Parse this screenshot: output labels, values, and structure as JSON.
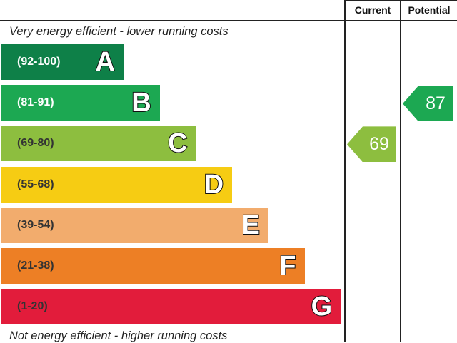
{
  "header": {
    "current": "Current",
    "potential": "Potential"
  },
  "captions": {
    "top": "Very energy efficient - lower running costs",
    "bottom": "Not energy efficient - higher running costs"
  },
  "chart_data": {
    "type": "bar",
    "categories": [
      "A",
      "B",
      "C",
      "D",
      "E",
      "F",
      "G"
    ],
    "ranges": [
      "(92-100)",
      "(81-91)",
      "(69-80)",
      "(55-68)",
      "(39-54)",
      "(21-38)",
      "(1-20)"
    ],
    "colors": [
      "#0e8048",
      "#1ca852",
      "#8dbe3f",
      "#f6cc13",
      "#f2ac6d",
      "#ed7f25",
      "#e21c3b"
    ],
    "range_text_colors": [
      "#ffffff",
      "#ffffff",
      "#333333",
      "#333333",
      "#333333",
      "#333333",
      "#333333"
    ],
    "current": {
      "value": 69,
      "band": "C",
      "color": "#8dbe3f"
    },
    "potential": {
      "value": 87,
      "band": "B",
      "color": "#1ca852"
    }
  }
}
